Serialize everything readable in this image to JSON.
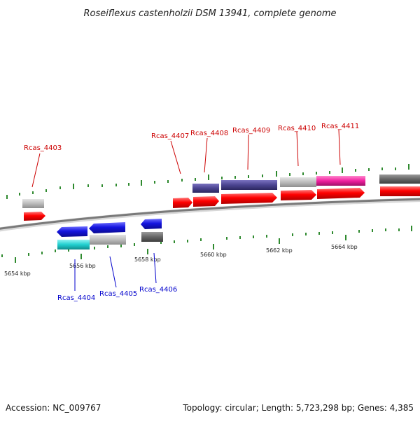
{
  "title": "Roseiflexus castenholzii DSM 13941, complete genome",
  "footer": {
    "accession": "Accession: NC_009767",
    "summary": "Topology: circular; Length: 5,723,298 bp; Genes: 4,385"
  },
  "colors": {
    "background": "#ffffff",
    "backbone": "#7a7a7a",
    "tick_marks": "#2f8a2f",
    "forward_labels": "#cc0000",
    "reverse_labels": "#0000cc",
    "cds": "#ff0000",
    "blue_gene": "#1515e0",
    "gray": "#bbbbbb",
    "dark_gray": "#666666",
    "indigo": "#4b4490",
    "cyan": "#20d0d0",
    "magenta": "#f020a0"
  },
  "axis": {
    "tick_labels": [
      "5654 kbp",
      "5656 kbp",
      "5658 kbp",
      "5660 kbp",
      "5662 kbp",
      "5664 kbp"
    ]
  },
  "genes": [
    {
      "name": "Rcas_4403",
      "strand": "forward"
    },
    {
      "name": "Rcas_4404",
      "strand": "reverse"
    },
    {
      "name": "Rcas_4405",
      "strand": "reverse"
    },
    {
      "name": "Rcas_4406",
      "strand": "reverse"
    },
    {
      "name": "Rcas_4407",
      "strand": "forward"
    },
    {
      "name": "Rcas_4408",
      "strand": "forward"
    },
    {
      "name": "Rcas_4409",
      "strand": "forward"
    },
    {
      "name": "Rcas_4410",
      "strand": "forward"
    },
    {
      "name": "Rcas_4411",
      "strand": "forward"
    }
  ]
}
